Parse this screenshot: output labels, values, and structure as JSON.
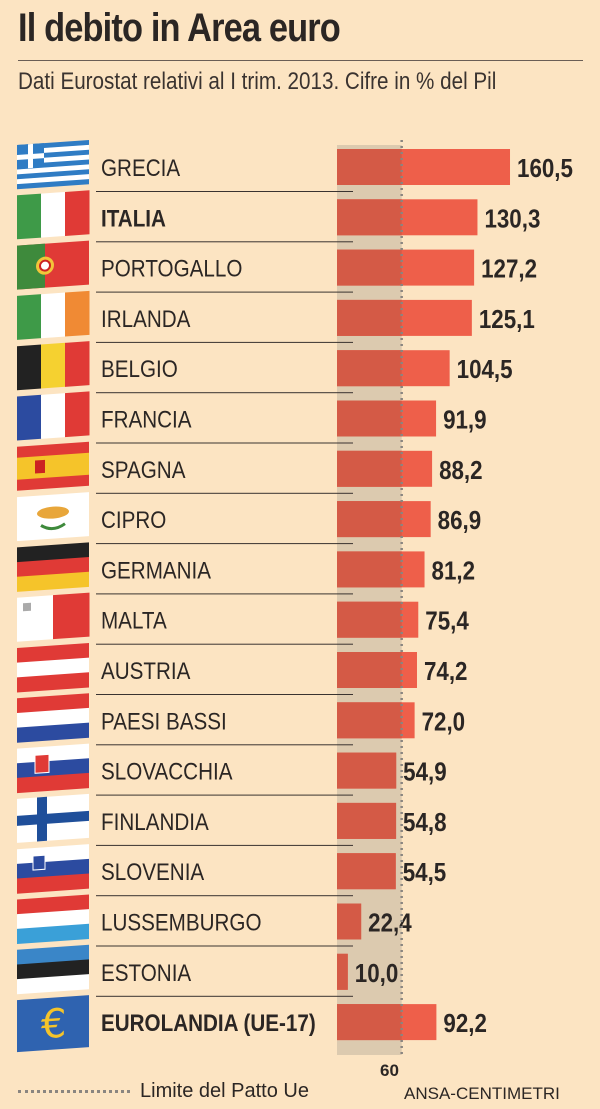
{
  "title": "Il debito in Area euro",
  "subtitle": "Dati Eurostat relativi al I trim. 2013. Cifre in % del Pil",
  "legend": "Limite del Patto Ue",
  "credit": "ANSA-CENTIMETRI",
  "colors": {
    "background": "#fce4c2",
    "bar": "#ee5f4a",
    "bar_below_limit": "#d45a46",
    "limit_band": "#dccaaf"
  },
  "chart_data": {
    "type": "bar",
    "orientation": "horizontal",
    "categories": [
      "GRECIA",
      "ITALIA",
      "PORTOGALLO",
      "IRLANDA",
      "BELGIO",
      "FRANCIA",
      "SPAGNA",
      "CIPRO",
      "GERMANIA",
      "MALTA",
      "AUSTRIA",
      "PAESI BASSI",
      "SLOVACCHIA",
      "FINLANDIA",
      "SLOVENIA",
      "LUSSEMBURGO",
      "ESTONIA",
      "EUROLANDIA (UE-17)"
    ],
    "values": [
      160.5,
      130.3,
      127.2,
      125.1,
      104.5,
      91.9,
      88.2,
      86.9,
      81.2,
      75.4,
      74.2,
      72.0,
      54.9,
      54.8,
      54.5,
      22.4,
      10.0,
      92.2
    ],
    "value_labels": [
      "160,5",
      "130,3",
      "127,2",
      "125,1",
      "104,5",
      "91,9",
      "88,2",
      "86,9",
      "81,2",
      "75,4",
      "74,2",
      "72,0",
      "54,9",
      "54,8",
      "54,5",
      "22,4",
      "10,0",
      "92,2"
    ],
    "bold_categories": [
      "ITALIA",
      "EUROLANDIA (UE-17)"
    ],
    "flags": [
      "greece-flag",
      "italy-flag",
      "portugal-flag",
      "ireland-flag",
      "belgium-flag",
      "france-flag",
      "spain-flag",
      "cyprus-flag",
      "germany-flag",
      "malta-flag",
      "austria-flag",
      "netherlands-flag",
      "slovakia-flag",
      "finland-flag",
      "slovenia-flag",
      "luxembourg-flag",
      "estonia-flag",
      "euro-flag"
    ],
    "reference_line": {
      "value": 60,
      "label": "60",
      "style": "dotted"
    },
    "xlim": [
      0,
      165
    ]
  }
}
